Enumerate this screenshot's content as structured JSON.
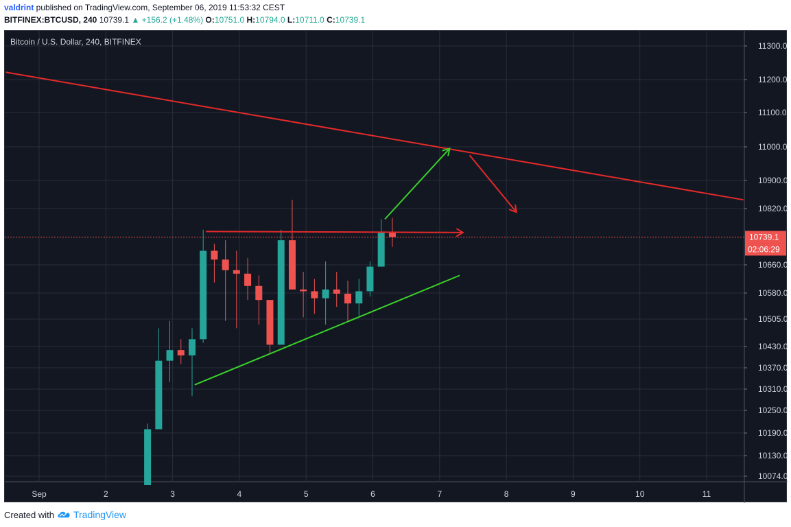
{
  "header": {
    "author": "valdrint",
    "published_text": " published on TradingView.com, September 06, 2019 11:53:32 CEST",
    "symbol": "BITFINEX:BTCUSD, 240",
    "last": "10739.1",
    "change": "+156.2 (+1.48%)",
    "o_label": "O:",
    "o_value": "10751.0",
    "h_label": "H:",
    "h_value": "10794.0",
    "l_label": "L:",
    "l_value": "10711.0",
    "c_label": "C:",
    "c_value": "10739.1"
  },
  "footer": {
    "created_with": "Created with",
    "brand": "TradingView"
  },
  "colors": {
    "bg": "#131722",
    "grid": "#2a2e39",
    "up": "#26a69a",
    "down": "#ef5350",
    "red_line": "#e52a2a",
    "green_line": "#3ad12a",
    "text": "#d1d4dc"
  },
  "chart_data": {
    "type": "candlestick",
    "title": "Bitcoin / U.S. Dollar, 240, BITFINEX",
    "x_labels": [
      "Sep",
      "2",
      "3",
      "4",
      "5",
      "6",
      "7",
      "8",
      "9",
      "10",
      "11"
    ],
    "y_ticks": [
      "11300.0",
      "11200.0",
      "11100.0",
      "11000.0",
      "10900.0",
      "10820.0",
      "10739.1",
      "10660.0",
      "10580.0",
      "10505.0",
      "10430.0",
      "10370.0",
      "10310.0",
      "10250.0",
      "10190.0",
      "10130.0",
      "10074.0"
    ],
    "ylim": [
      10050,
      11350
    ],
    "current_price": {
      "value": 10739.1,
      "label": "10739.1",
      "countdown": "02:06:29"
    },
    "candles": [
      {
        "day": 2.625,
        "o": 10050,
        "h": 10215,
        "l": 10050,
        "c": 10200
      },
      {
        "day": 2.792,
        "o": 10200,
        "h": 10480,
        "l": 10200,
        "c": 10390
      },
      {
        "day": 2.958,
        "o": 10390,
        "h": 10500,
        "l": 10330,
        "c": 10420
      },
      {
        "day": 3.125,
        "o": 10420,
        "h": 10450,
        "l": 10380,
        "c": 10405
      },
      {
        "day": 3.292,
        "o": 10405,
        "h": 10480,
        "l": 10290,
        "c": 10450
      },
      {
        "day": 3.458,
        "o": 10450,
        "h": 10760,
        "l": 10440,
        "c": 10700
      },
      {
        "day": 3.625,
        "o": 10700,
        "h": 10720,
        "l": 10610,
        "c": 10675
      },
      {
        "day": 3.792,
        "o": 10675,
        "h": 10730,
        "l": 10500,
        "c": 10645
      },
      {
        "day": 3.958,
        "o": 10645,
        "h": 10700,
        "l": 10480,
        "c": 10635
      },
      {
        "day": 4.125,
        "o": 10635,
        "h": 10680,
        "l": 10560,
        "c": 10600
      },
      {
        "day": 4.292,
        "o": 10600,
        "h": 10630,
        "l": 10490,
        "c": 10560
      },
      {
        "day": 4.458,
        "o": 10560,
        "h": 10560,
        "l": 10410,
        "c": 10435
      },
      {
        "day": 4.625,
        "o": 10435,
        "h": 10760,
        "l": 10435,
        "c": 10730
      },
      {
        "day": 4.792,
        "o": 10730,
        "h": 10845,
        "l": 10590,
        "c": 10590
      },
      {
        "day": 4.958,
        "o": 10590,
        "h": 10640,
        "l": 10510,
        "c": 10585
      },
      {
        "day": 5.125,
        "o": 10585,
        "h": 10620,
        "l": 10520,
        "c": 10565
      },
      {
        "day": 5.292,
        "o": 10565,
        "h": 10670,
        "l": 10490,
        "c": 10590
      },
      {
        "day": 5.458,
        "o": 10590,
        "h": 10640,
        "l": 10540,
        "c": 10578
      },
      {
        "day": 5.625,
        "o": 10578,
        "h": 10615,
        "l": 10500,
        "c": 10550
      },
      {
        "day": 5.792,
        "o": 10550,
        "h": 10620,
        "l": 10515,
        "c": 10585
      },
      {
        "day": 5.958,
        "o": 10585,
        "h": 10670,
        "l": 10570,
        "c": 10655
      },
      {
        "day": 6.125,
        "o": 10655,
        "h": 10790,
        "l": 10655,
        "c": 10751
      },
      {
        "day": 6.292,
        "o": 10751,
        "h": 10794,
        "l": 10711,
        "c": 10739.1
      }
    ],
    "annotations": [
      {
        "kind": "trendline",
        "color": "red",
        "from": {
          "day": 0.5,
          "price": 11222
        },
        "to": {
          "day": 11.55,
          "price": 10845
        }
      },
      {
        "kind": "arrow",
        "color": "red",
        "from": {
          "day": 3.5,
          "price": 10755
        },
        "to": {
          "day": 7.35,
          "price": 10752
        }
      },
      {
        "kind": "arrow",
        "color": "red",
        "from": {
          "day": 7.45,
          "price": 10975
        },
        "to": {
          "day": 8.15,
          "price": 10810
        }
      },
      {
        "kind": "trendline",
        "color": "green",
        "from": {
          "day": 3.33,
          "price": 10322
        },
        "to": {
          "day": 7.3,
          "price": 10630
        }
      },
      {
        "kind": "arrow",
        "color": "green",
        "from": {
          "day": 6.18,
          "price": 10790
        },
        "to": {
          "day": 7.15,
          "price": 10995
        }
      }
    ]
  }
}
